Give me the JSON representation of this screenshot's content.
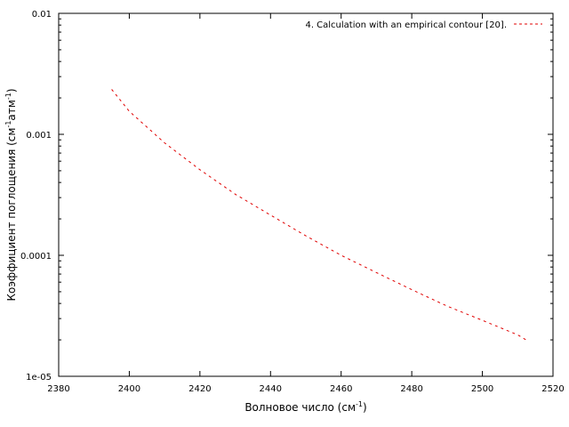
{
  "chart_data": {
    "type": "line",
    "title": "",
    "xlabel": "Волновое число (см",
    "xlabel_sup": "-1",
    "xlabel_end": ")",
    "ylabel": {
      "parts": [
        {
          "text": "Коэффициент поглощения (см",
          "sup": false
        },
        {
          "text": "-1",
          "sup": true
        },
        {
          "text": "атм",
          "sup": false
        },
        {
          "text": "-1",
          "sup": true
        },
        {
          "text": ")",
          "sup": false
        }
      ]
    },
    "xlim": [
      2380,
      2520
    ],
    "ylim": [
      1e-05,
      0.01
    ],
    "yscale": "log",
    "grid": false,
    "legend_position": "top-right",
    "x_ticks": [
      {
        "value": 2380,
        "label": "2380"
      },
      {
        "value": 2400,
        "label": "2400"
      },
      {
        "value": 2420,
        "label": "2420"
      },
      {
        "value": 2440,
        "label": "2440"
      },
      {
        "value": 2460,
        "label": "2460"
      },
      {
        "value": 2480,
        "label": "2480"
      },
      {
        "value": 2500,
        "label": "2500"
      },
      {
        "value": 2520,
        "label": "2520"
      }
    ],
    "y_ticks": [
      {
        "value": 1e-05,
        "label": "1e-05"
      },
      {
        "value": 0.0001,
        "label": "0.0001"
      },
      {
        "value": 0.001,
        "label": "0.001"
      },
      {
        "value": 0.01,
        "label": "0.01"
      }
    ],
    "series": [
      {
        "name": "4. Calculation with an empirical contour [20].",
        "color": "#e00000",
        "style": "dashed",
        "x": [
          2395,
          2400,
          2410,
          2420,
          2430,
          2440,
          2450,
          2460,
          2470,
          2480,
          2490,
          2500,
          2510,
          2513
        ],
        "y": [
          0.00235,
          0.00155,
          0.00085,
          0.00051,
          0.00032,
          0.000215,
          0.000145,
          0.0001,
          7.2e-05,
          5.2e-05,
          3.8e-05,
          2.9e-05,
          2.2e-05,
          1.95e-05
        ]
      }
    ]
  }
}
